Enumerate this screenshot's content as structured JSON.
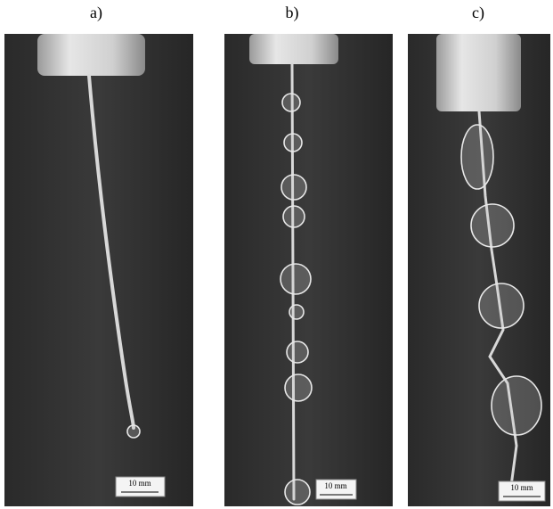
{
  "panels": [
    {
      "label": "a)",
      "scale_label": "10 mm"
    },
    {
      "label": "b)",
      "scale_label": "10 mm"
    },
    {
      "label": "c)",
      "scale_label": "10 mm"
    }
  ]
}
